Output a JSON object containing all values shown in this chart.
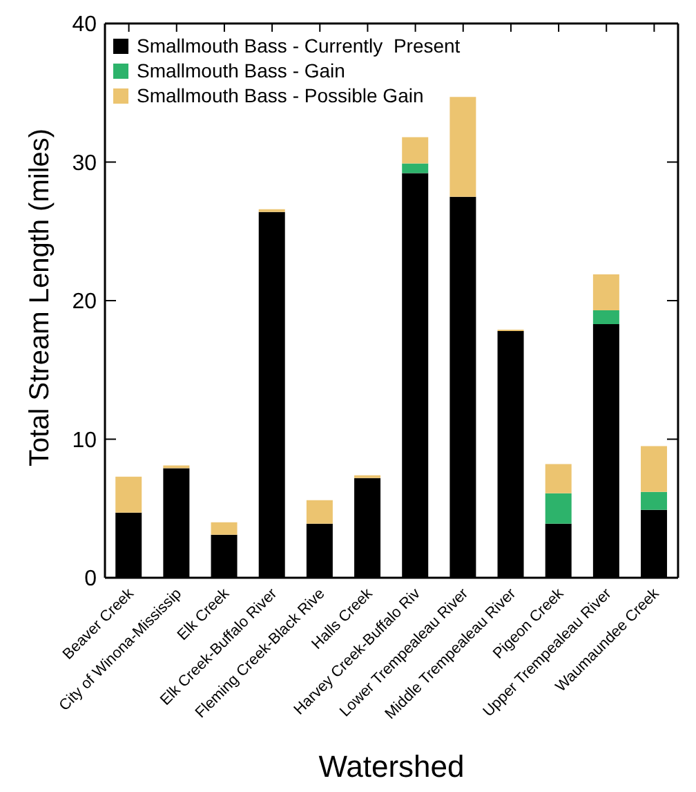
{
  "chart_data": {
    "type": "bar",
    "stacked": true,
    "xlabel": "Watershed",
    "ylabel": "Total Stream Length (miles)",
    "categories": [
      "Beaver Creek",
      "City of Winona-Mississip",
      "Elk Creek",
      "Elk Creek-Buffalo River",
      "Fleming Creek-Black Rive",
      "Halls Creek",
      "Harvey Creek-Buffalo Riv",
      "Lower Trempealeau River",
      "Middle Trempealeau River",
      "Pigeon Creek",
      "Upper Trempealeau River",
      "Waumaundee Creek"
    ],
    "series": [
      {
        "name": "Smallmouth Bass - Currently  Present",
        "color": "#000000",
        "values": [
          4.7,
          7.9,
          3.1,
          26.4,
          3.9,
          7.2,
          29.2,
          27.5,
          17.8,
          3.9,
          18.3,
          4.9
        ]
      },
      {
        "name": "Smallmouth Bass - Gain",
        "color": "#2db36b",
        "values": [
          0,
          0,
          0,
          0,
          0,
          0,
          0.7,
          0,
          0,
          2.2,
          1.0,
          1.3
        ]
      },
      {
        "name": "Smallmouth Bass - Possible Gain",
        "color": "#ecc470",
        "values": [
          2.6,
          0.2,
          0.9,
          0.2,
          1.7,
          0.2,
          1.9,
          7.2,
          0.1,
          2.1,
          2.6,
          3.3
        ]
      }
    ],
    "ylim": [
      0,
      40
    ],
    "yticks": [
      0,
      10,
      20,
      30,
      40
    ],
    "legend": "top left"
  }
}
